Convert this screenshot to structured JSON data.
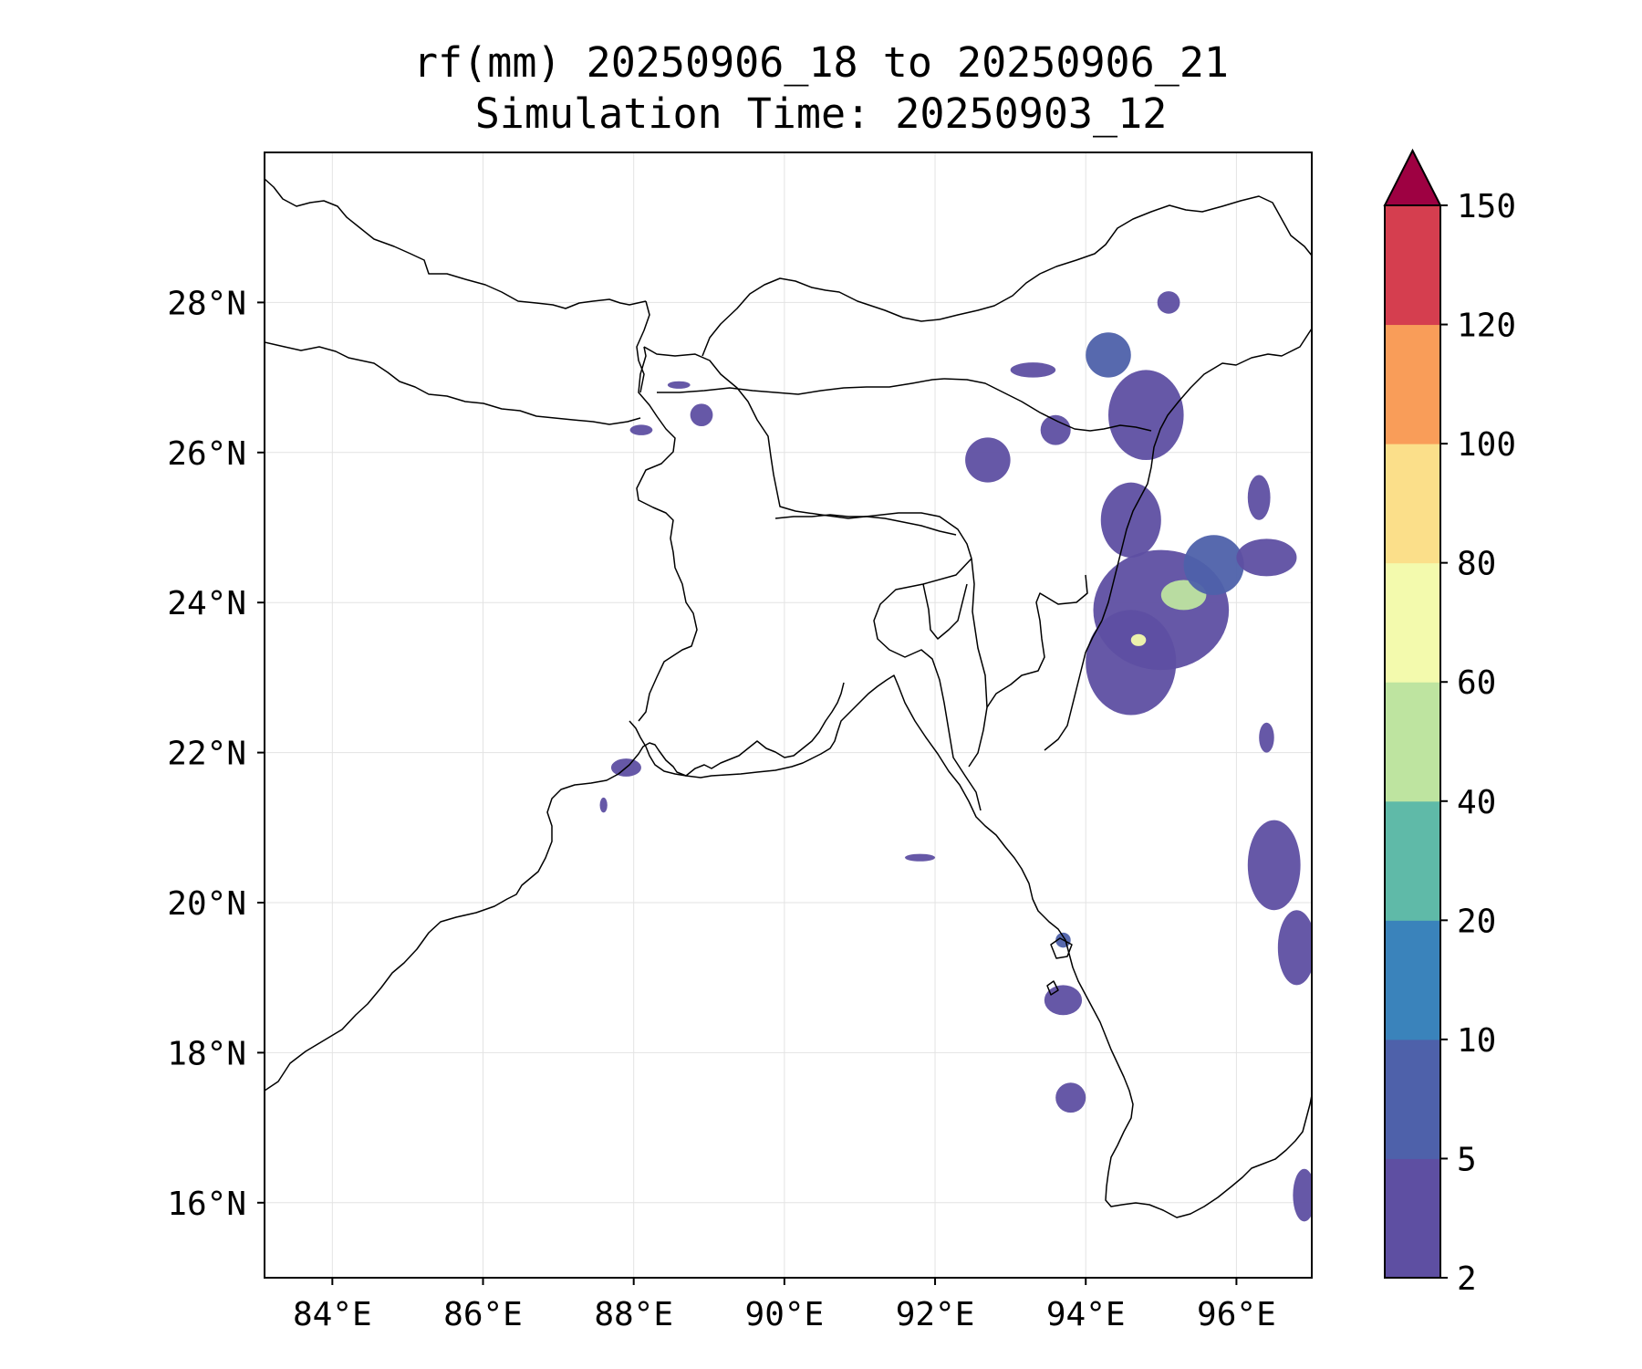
{
  "title": {
    "line1": "rf(mm) 20250906_18 to 20250906_21",
    "line2": "Simulation Time: 20250903_12"
  },
  "map": {
    "extent": {
      "lon": [
        83.1,
        97.0
      ],
      "lat": [
        15.0,
        30.0
      ]
    },
    "lon_ticks": [
      {
        "value": 84,
        "label": "84°E"
      },
      {
        "value": 86,
        "label": "86°E"
      },
      {
        "value": 88,
        "label": "88°E"
      },
      {
        "value": 90,
        "label": "90°E"
      },
      {
        "value": 92,
        "label": "92°E"
      },
      {
        "value": 94,
        "label": "94°E"
      },
      {
        "value": 96,
        "label": "96°E"
      }
    ],
    "lat_ticks": [
      {
        "value": 16,
        "label": "16°N"
      },
      {
        "value": 18,
        "label": "18°N"
      },
      {
        "value": 20,
        "label": "20°N"
      },
      {
        "value": 22,
        "label": "22°N"
      },
      {
        "value": 24,
        "label": "24°N"
      },
      {
        "value": 26,
        "label": "26°N"
      },
      {
        "value": 28,
        "label": "28°N"
      }
    ],
    "gridlines": true
  },
  "colorbar": {
    "levels": [
      {
        "value": 2,
        "label": "2",
        "color": "#5e4fa2"
      },
      {
        "value": 5,
        "label": "5",
        "color": "#4e61aa"
      },
      {
        "value": 10,
        "label": "10",
        "color": "#3a83bb"
      },
      {
        "value": 20,
        "label": "20",
        "color": "#5fbaa8"
      },
      {
        "value": 40,
        "label": "40",
        "color": "#bee4a0"
      },
      {
        "value": 60,
        "label": "60",
        "color": "#f3faad"
      },
      {
        "value": 80,
        "label": "80",
        "color": "#fbdf8a"
      },
      {
        "value": 100,
        "label": "100",
        "color": "#f99d59"
      },
      {
        "value": 120,
        "label": "120",
        "color": "#d53e4f"
      },
      {
        "value": 150,
        "label": "150",
        "color": "#9e0142"
      }
    ],
    "extend": "max"
  },
  "rain_cells": [
    {
      "lon": 95.0,
      "lat": 23.9,
      "rx": 0.9,
      "ry": 0.8,
      "level": 0
    },
    {
      "lon": 94.6,
      "lat": 23.2,
      "rx": 0.6,
      "ry": 0.7,
      "level": 0
    },
    {
      "lon": 95.3,
      "lat": 24.1,
      "rx": 0.3,
      "ry": 0.2,
      "level": 4
    },
    {
      "lon": 94.7,
      "lat": 23.5,
      "rx": 0.1,
      "ry": 0.08,
      "level": 5
    },
    {
      "lon": 95.7,
      "lat": 24.5,
      "rx": 0.4,
      "ry": 0.4,
      "level": 1
    },
    {
      "lon": 96.4,
      "lat": 24.6,
      "rx": 0.4,
      "ry": 0.25,
      "level": 0
    },
    {
      "lon": 94.6,
      "lat": 25.1,
      "rx": 0.4,
      "ry": 0.5,
      "level": 0
    },
    {
      "lon": 94.8,
      "lat": 26.5,
      "rx": 0.5,
      "ry": 0.6,
      "level": 0
    },
    {
      "lon": 94.3,
      "lat": 27.3,
      "rx": 0.3,
      "ry": 0.3,
      "level": 1
    },
    {
      "lon": 93.3,
      "lat": 27.1,
      "rx": 0.3,
      "ry": 0.1,
      "level": 0
    },
    {
      "lon": 92.7,
      "lat": 25.9,
      "rx": 0.3,
      "ry": 0.3,
      "level": 0
    },
    {
      "lon": 93.6,
      "lat": 26.3,
      "rx": 0.2,
      "ry": 0.2,
      "level": 0
    },
    {
      "lon": 95.1,
      "lat": 28.0,
      "rx": 0.15,
      "ry": 0.15,
      "level": 0
    },
    {
      "lon": 96.3,
      "lat": 25.4,
      "rx": 0.15,
      "ry": 0.3,
      "level": 0
    },
    {
      "lon": 88.9,
      "lat": 26.5,
      "rx": 0.15,
      "ry": 0.15,
      "level": 0
    },
    {
      "lon": 88.1,
      "lat": 26.3,
      "rx": 0.15,
      "ry": 0.07,
      "level": 0
    },
    {
      "lon": 88.6,
      "lat": 26.9,
      "rx": 0.15,
      "ry": 0.05,
      "level": 0
    },
    {
      "lon": 87.9,
      "lat": 21.8,
      "rx": 0.2,
      "ry": 0.12,
      "level": 0
    },
    {
      "lon": 87.6,
      "lat": 21.3,
      "rx": 0.05,
      "ry": 0.1,
      "level": 0
    },
    {
      "lon": 96.5,
      "lat": 20.5,
      "rx": 0.35,
      "ry": 0.6,
      "level": 0
    },
    {
      "lon": 96.8,
      "lat": 19.4,
      "rx": 0.25,
      "ry": 0.5,
      "level": 0
    },
    {
      "lon": 93.7,
      "lat": 18.7,
      "rx": 0.25,
      "ry": 0.2,
      "level": 0
    },
    {
      "lon": 93.8,
      "lat": 17.4,
      "rx": 0.2,
      "ry": 0.2,
      "level": 0
    },
    {
      "lon": 93.7,
      "lat": 19.5,
      "rx": 0.1,
      "ry": 0.1,
      "level": 1
    },
    {
      "lon": 96.9,
      "lat": 16.1,
      "rx": 0.15,
      "ry": 0.35,
      "level": 0
    },
    {
      "lon": 91.8,
      "lat": 20.6,
      "rx": 0.2,
      "ry": 0.05,
      "level": 0
    },
    {
      "lon": 96.4,
      "lat": 22.2,
      "rx": 0.1,
      "ry": 0.2,
      "level": 0
    }
  ]
}
